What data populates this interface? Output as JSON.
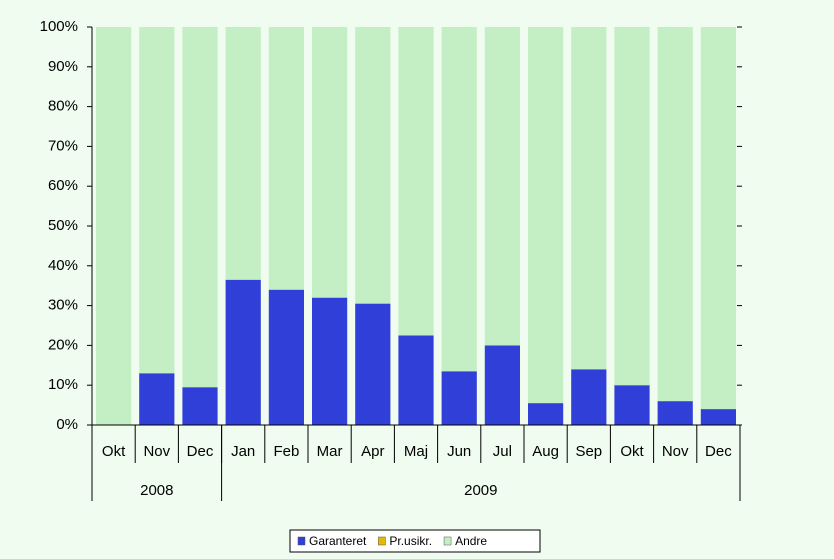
{
  "chart_data": {
    "type": "stacked_bar_100",
    "categories": [
      "Okt",
      "Nov",
      "Dec",
      "Jan",
      "Feb",
      "Mar",
      "Apr",
      "Maj",
      "Jun",
      "Jul",
      "Aug",
      "Sep",
      "Okt",
      "Nov",
      "Dec"
    ],
    "groups": [
      {
        "label": "2008",
        "count": 3
      },
      {
        "label": "2009",
        "count": 12
      }
    ],
    "series": [
      {
        "name": "Garanteret",
        "color": "#2f3fd8",
        "values": [
          0,
          13,
          9.5,
          36.5,
          34,
          32,
          30.5,
          22.5,
          13.5,
          20,
          5.5,
          14,
          10,
          6,
          4
        ]
      },
      {
        "name": "Pr.usikr.",
        "color": "#e6b800",
        "values": [
          0,
          0,
          0,
          0,
          0,
          0,
          0,
          0,
          0,
          0,
          0,
          0,
          0,
          0,
          0
        ]
      },
      {
        "name": "Andre",
        "color": "#c4eec4",
        "values": [
          100,
          87,
          90.5,
          63.5,
          66,
          68,
          69.5,
          77.5,
          86.5,
          80,
          94.5,
          86,
          90,
          94,
          96
        ]
      }
    ],
    "ylim": [
      0,
      100
    ],
    "yticks": [
      {
        "value": 0,
        "label": "0%"
      },
      {
        "value": 10,
        "label": "10%"
      },
      {
        "value": 20,
        "label": "20%"
      },
      {
        "value": 30,
        "label": "30%"
      },
      {
        "value": 40,
        "label": "40%"
      },
      {
        "value": 50,
        "label": "50%"
      },
      {
        "value": 60,
        "label": "60%"
      },
      {
        "value": 70,
        "label": "70%"
      },
      {
        "value": 80,
        "label": "80%"
      },
      {
        "value": 90,
        "label": "90%"
      },
      {
        "value": 100,
        "label": "100%"
      }
    ],
    "legend": "bottom"
  }
}
